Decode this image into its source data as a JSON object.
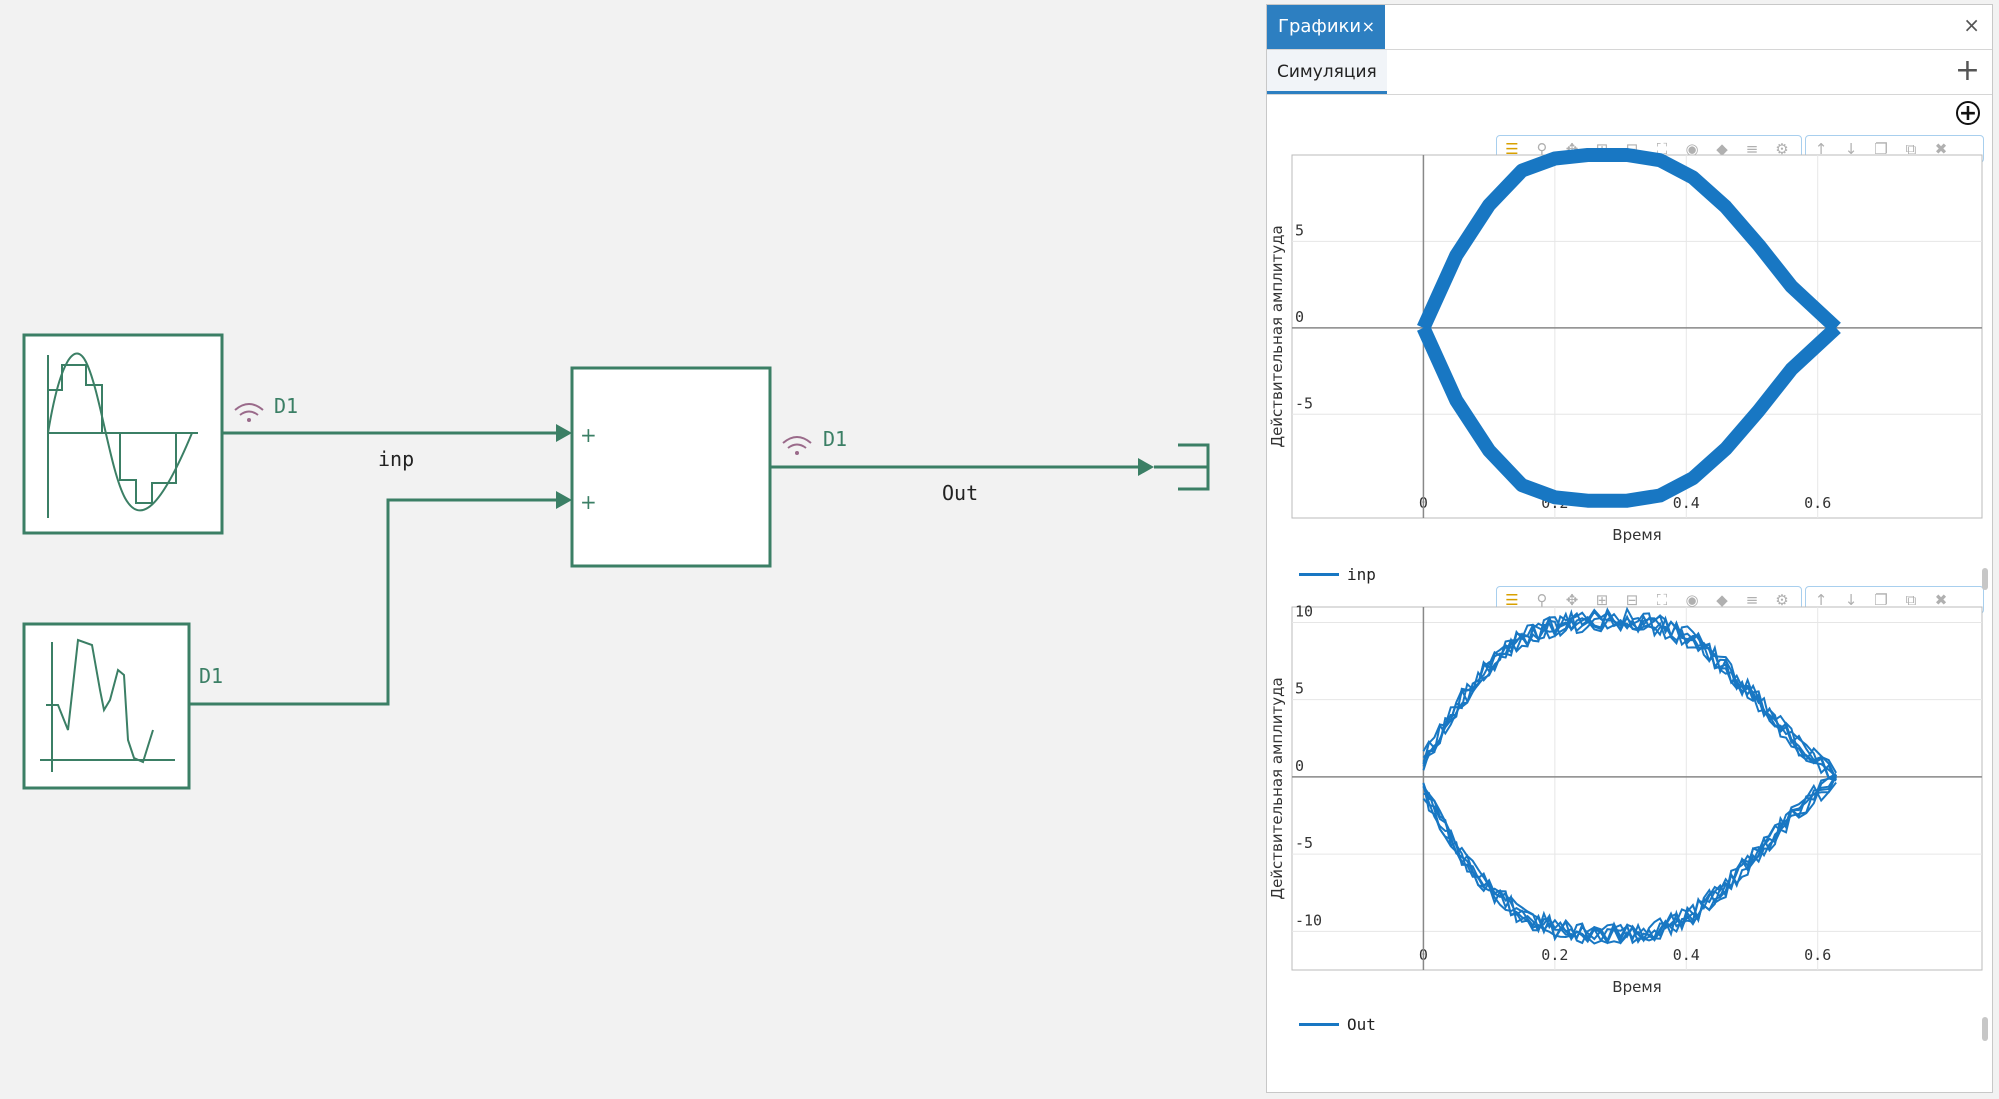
{
  "canvas": {
    "blocks": {
      "signal1_label": "D1",
      "signal2_label": "D1",
      "sum_output_label": "D1",
      "sum_port1": "+",
      "sum_port2": "+"
    },
    "wires": {
      "inp_label": "inp",
      "out_label": "Out"
    }
  },
  "panel": {
    "tab_label": "Графики",
    "tab_close": "×",
    "close_label": "×",
    "subtab_label": "Симуляция",
    "add_label": "+",
    "zoom_label": "+",
    "toolbar_icons": [
      "menu-icon",
      "zoom-icon",
      "pan-icon",
      "zoom-in-box-icon",
      "zoom-out-box-icon",
      "autoscale-icon",
      "camera-icon",
      "tag-icon",
      "lines-icon",
      "gear-icon",
      "arrow-up-icon",
      "arrow-down-icon",
      "copy-icon",
      "duplicate-icon",
      "trash-icon"
    ]
  },
  "colors": {
    "accent": "#2d7fc1",
    "wire": "#3b7f65",
    "signal": "#1877c3",
    "wifi": "#9a6a8a"
  },
  "chart_data": [
    {
      "type": "line",
      "title": "",
      "xlabel": "Время",
      "ylabel": "Действительная амплитуда",
      "xlim": [
        -0.2,
        0.85
      ],
      "ylim": [
        -11,
        10
      ],
      "xticks": [
        "0",
        "0.2",
        "0.4",
        "0.6"
      ],
      "yticks": [
        "5",
        "0",
        "-5"
      ],
      "series": [
        {
          "name": "inp",
          "x": [
            0,
            0.05,
            0.1,
            0.15,
            0.2,
            0.25,
            0.31,
            0.36,
            0.41,
            0.46,
            0.51,
            0.56,
            0.628
          ],
          "upper": [
            0,
            4.2,
            7.1,
            9.1,
            9.8,
            10.0,
            10.0,
            9.7,
            8.7,
            7.0,
            4.8,
            2.4,
            0
          ],
          "lower": [
            0,
            -4.2,
            -7.1,
            -9.1,
            -9.8,
            -10.0,
            -10.0,
            -9.7,
            -8.7,
            -7.0,
            -4.8,
            -2.4,
            0
          ]
        }
      ]
    },
    {
      "type": "line",
      "title": "",
      "xlabel": "Время",
      "ylabel": "Действительная амплитуда",
      "xlim": [
        -0.2,
        0.85
      ],
      "ylim": [
        -12.5,
        11
      ],
      "xticks": [
        "0",
        "0.2",
        "0.4",
        "0.6"
      ],
      "yticks": [
        "10",
        "5",
        "0",
        "-5",
        "-10"
      ],
      "series": [
        {
          "name": "Out",
          "x": [
            0,
            0.05,
            0.1,
            0.15,
            0.2,
            0.25,
            0.31,
            0.36,
            0.41,
            0.46,
            0.51,
            0.56,
            0.628
          ],
          "upper": [
            1,
            4.6,
            7.2,
            9.0,
            9.8,
            10.1,
            10.2,
            9.8,
            8.9,
            7.1,
            4.9,
            2.5,
            0
          ],
          "lower": [
            -1,
            -4.6,
            -7.2,
            -9.0,
            -9.8,
            -10.1,
            -10.2,
            -9.8,
            -8.9,
            -7.1,
            -4.9,
            -2.5,
            0
          ]
        }
      ]
    }
  ]
}
